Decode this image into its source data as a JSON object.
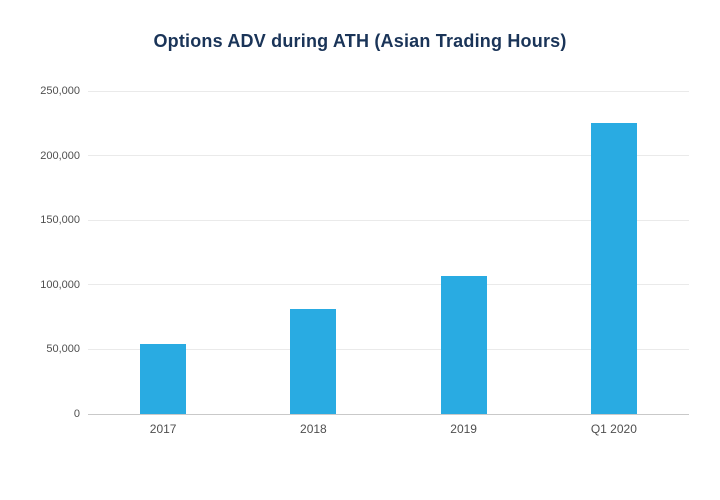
{
  "page": {
    "background_color": "#ffffff"
  },
  "chart_data": {
    "type": "bar",
    "title": "Options ADV during ATH (Asian Trading Hours)",
    "categories": [
      "2017",
      "2018",
      "2019",
      "Q1 2020"
    ],
    "values": [
      54000,
      81000,
      107000,
      225000
    ],
    "xlabel": "",
    "ylabel": "",
    "ylim": [
      0,
      250000
    ],
    "yticks": [
      0,
      50000,
      100000,
      150000,
      200000,
      250000
    ],
    "ytick_labels": [
      "0",
      "50,000",
      "100,000",
      "150,000",
      "200,000",
      "250,000"
    ],
    "grid": true,
    "legend": false,
    "colors": {
      "bar": "#29abe2",
      "title": "#1a3458",
      "tick_label": "#4f4f4f",
      "gridline": "#eaeaea",
      "baseline": "#c9c9c9"
    }
  }
}
